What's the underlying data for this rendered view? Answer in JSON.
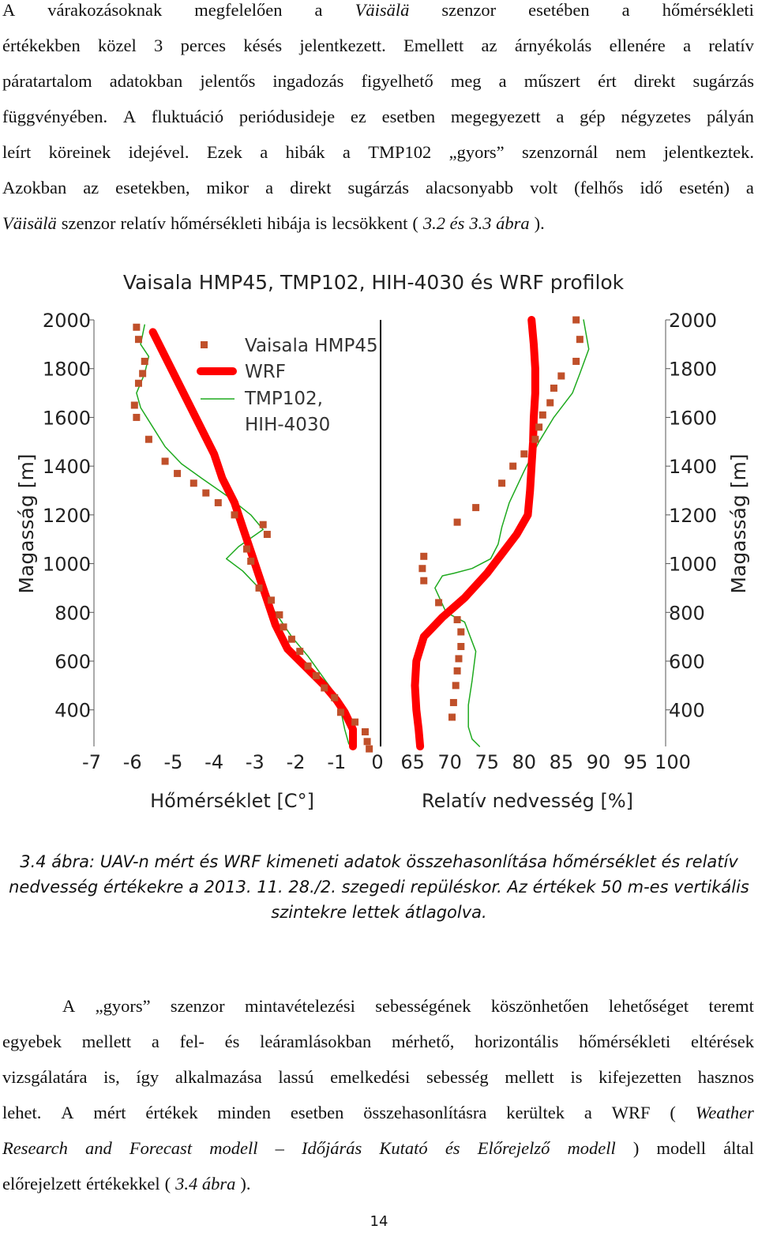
{
  "top_paragraph": [
    [
      "A",
      "várakozásoknak",
      "megfelelően",
      "a",
      {
        "t": "Väisälä",
        "i": true
      },
      "szenzor",
      "esetében",
      "a",
      "hőmérsékleti"
    ],
    [
      "értékekben",
      "közel",
      "3",
      "perces",
      "késés",
      "jelentkezett.",
      "Emellett",
      "az",
      "árnyékolás",
      "ellenére",
      "a",
      "relatív"
    ],
    [
      "páratartalom",
      "adatokban",
      "jelentős",
      "ingadozás",
      "figyelhető",
      "meg",
      "a",
      "műszert",
      "ért",
      "direkt",
      "sugárzás"
    ],
    [
      "függvényében.",
      "A",
      "fluktuáció",
      "periódusideje",
      "ez",
      "esetben",
      "megegyezett",
      "a",
      "gép",
      "négyzetes",
      "pályán"
    ],
    [
      "leírt",
      "köreinek",
      "idejével.",
      "Ezek",
      "a",
      "hibák",
      "a",
      "TMP102",
      "„gyors”",
      "szenzornál",
      "nem",
      "jelentkeztek."
    ],
    [
      "Azokban",
      "az",
      "esetekben,",
      "mikor",
      "a",
      "direkt",
      "sugárzás",
      "alacsonyabb",
      "volt",
      "(felhős",
      "idő",
      "esetén)",
      "a"
    ],
    [
      {
        "t": "Väisälä",
        "i": true
      },
      "szenzor",
      "relatív",
      "hőmérsékleti",
      "hibája",
      "is",
      "lecsökkent",
      "(",
      {
        "t": "3.2 és",
        "i": true
      },
      {
        "t": "3.3 ábra",
        "i": true
      },
      ")."
    ]
  ],
  "chart_data": {
    "type": "line",
    "title": "Vaisala HMP45, TMP102, HIH-4030 és WRF profilok",
    "left_panel": {
      "xlabel": "Hőmérséklet [C°]",
      "xticks": [
        "-7",
        "-6",
        "-5",
        "-4",
        "-3",
        "-2",
        "-1",
        "0"
      ],
      "xlim": [
        -7,
        0
      ],
      "yticks": [
        "2000",
        "1800",
        "1600",
        "1400",
        "1200",
        "1000",
        "800",
        "600",
        "400"
      ],
      "ylabel": "Magasság [m]",
      "ylim": [
        250,
        2000
      ],
      "series": [
        {
          "name": "Vaisala HMP45",
          "color": "#c0502a",
          "style": "square-markers",
          "x": [
            -5.9,
            -5.85,
            -5.7,
            -5.75,
            -5.85,
            -5.95,
            -5.9,
            -5.6,
            -5.2,
            -4.9,
            -4.5,
            -4.2,
            -3.9,
            -3.5,
            -2.8,
            -2.7,
            -3.2,
            -3.1,
            -2.9,
            -2.6,
            -2.4,
            -2.3,
            -2.1,
            -1.9,
            -1.7,
            -1.5,
            -1.3,
            -1.05,
            -0.9,
            -0.55,
            -0.3,
            -0.25,
            -0.2
          ],
          "y": [
            1970,
            1920,
            1830,
            1780,
            1740,
            1650,
            1600,
            1510,
            1420,
            1370,
            1330,
            1290,
            1250,
            1200,
            1160,
            1120,
            1060,
            1010,
            900,
            850,
            790,
            740,
            690,
            640,
            580,
            540,
            490,
            450,
            390,
            350,
            310,
            270,
            240
          ]
        },
        {
          "name": "WRF",
          "color": "#ff0000",
          "style": "thick-line",
          "x": [
            -5.5,
            -5.2,
            -4.9,
            -4.6,
            -4.3,
            -4.0,
            -3.8,
            -3.5,
            -3.3,
            -3.1,
            -2.9,
            -2.7,
            -2.5,
            -2.2,
            -1.9,
            -1.6,
            -1.3,
            -1.0,
            -0.8,
            -0.6,
            -0.6
          ],
          "y": [
            1950,
            1850,
            1750,
            1650,
            1550,
            1450,
            1350,
            1250,
            1150,
            1050,
            950,
            850,
            750,
            650,
            600,
            550,
            500,
            440,
            390,
            320,
            250
          ]
        },
        {
          "name": "TMP102, HIH-4030",
          "color": "#1faa1f",
          "style": "thin-line",
          "x": [
            -5.7,
            -5.8,
            -5.6,
            -5.7,
            -5.9,
            -5.8,
            -5.5,
            -5.2,
            -4.8,
            -4.3,
            -3.7,
            -3.1,
            -2.8,
            -3.4,
            -3.7,
            -3.3,
            -2.9,
            -2.5,
            -2.1,
            -1.7,
            -1.4,
            -1.1,
            -0.9,
            -0.8,
            -0.7
          ],
          "y": [
            1980,
            1900,
            1850,
            1780,
            1700,
            1640,
            1560,
            1480,
            1410,
            1350,
            1280,
            1200,
            1140,
            1070,
            1020,
            970,
            900,
            800,
            700,
            620,
            550,
            480,
            400,
            320,
            260
          ]
        }
      ]
    },
    "right_panel": {
      "xlabel": "Relatív nedvesség [%]",
      "xticks": [
        "65",
        "70",
        "75",
        "80",
        "85",
        "90",
        "95",
        "100"
      ],
      "xlim": [
        61,
        100
      ],
      "yticks": [
        "2000",
        "1800",
        "1600",
        "1400",
        "1200",
        "1000",
        "800",
        "600",
        "400"
      ],
      "ylabel": "Magasság [m]",
      "ylim": [
        250,
        2000
      ],
      "series": [
        {
          "name": "Vaisala HMP45",
          "color": "#c0502a",
          "style": "square-markers",
          "x": [
            87,
            87.5,
            87,
            85,
            84,
            83.5,
            82.5,
            82,
            81.5,
            80,
            78.5,
            77,
            73.5,
            71,
            66.5,
            66.3,
            66.5,
            68.5,
            71,
            71.5,
            71.5,
            71.2,
            71,
            70.8,
            70.5,
            70.3
          ],
          "y": [
            2000,
            1920,
            1830,
            1770,
            1720,
            1660,
            1610,
            1560,
            1510,
            1450,
            1400,
            1330,
            1230,
            1170,
            1030,
            980,
            930,
            840,
            770,
            720,
            660,
            610,
            560,
            500,
            430,
            370
          ]
        },
        {
          "name": "WRF",
          "color": "#ff0000",
          "style": "thick-line",
          "x": [
            81,
            81.3,
            81.5,
            81.5,
            81.3,
            81.2,
            81,
            80.8,
            80.5,
            79,
            77,
            75,
            72,
            69,
            66.5,
            65.5,
            65.3,
            65.5,
            65.8,
            66
          ],
          "y": [
            2000,
            1900,
            1800,
            1700,
            1600,
            1500,
            1400,
            1300,
            1200,
            1120,
            1040,
            960,
            860,
            780,
            700,
            600,
            500,
            400,
            320,
            250
          ]
        },
        {
          "name": "TMP102, HIH-4030",
          "color": "#1faa1f",
          "style": "thin-line",
          "x": [
            88,
            88.7,
            87.5,
            86.5,
            84,
            82,
            80,
            78,
            77,
            76.5,
            75.5,
            73,
            70.5,
            69,
            68,
            69.5,
            72,
            73.5,
            73,
            72.5,
            72.5,
            73,
            74
          ],
          "y": [
            2000,
            1880,
            1780,
            1700,
            1600,
            1500,
            1380,
            1250,
            1150,
            1080,
            1020,
            980,
            960,
            950,
            900,
            800,
            760,
            640,
            520,
            420,
            330,
            280,
            250
          ]
        }
      ]
    },
    "legend": {
      "placement": "top-right of left panel",
      "entries": [
        "Vaisala HMP45",
        "WRF",
        "TMP102,",
        "HIH-4030"
      ]
    }
  },
  "caption": [
    "3.4 ábra: UAV-n mért és WRF kimeneti adatok összehasonlítása hőmérséklet és relatív",
    "nedvesség értékekre a 2013. 11. 28./2. szegedi repüléskor. Az értékek 50 m-es vertikális",
    "szintekre lettek átlagolva."
  ],
  "bottom_paragraph": [
    [
      "A",
      "„gyors”",
      "szenzor",
      "mintavételezési",
      "sebességének",
      "köszönhetően",
      "lehetőséget",
      "teremt"
    ],
    [
      "egyebek",
      "mellett",
      "a",
      "fel-",
      "és",
      "leáramlásokban",
      "mérhető,",
      "horizontális",
      "hőmérsékleti",
      "eltérések"
    ],
    [
      "vizsgálatára",
      "is,",
      "így",
      "alkalmazása",
      "lassú",
      "emelkedési",
      "sebesség",
      "mellett",
      "is",
      "kifejezetten",
      "hasznos"
    ],
    [
      "lehet.",
      "A",
      "mért",
      "értékek",
      "minden",
      "esetben",
      "összehasonlításra",
      "kerültek",
      "a",
      "WRF",
      {
        "t": "(",
        "i": false
      },
      {
        "t": "Weather",
        "i": true
      }
    ],
    [
      {
        "t": "Research",
        "i": true
      },
      {
        "t": "and",
        "i": true
      },
      {
        "t": "Forecast",
        "i": true
      },
      {
        "t": "modell",
        "i": true
      },
      {
        "t": "–",
        "i": true
      },
      {
        "t": "Időjárás",
        "i": true
      },
      {
        "t": "Kutató",
        "i": true
      },
      {
        "t": "és",
        "i": true
      },
      {
        "t": "Előrejelző",
        "i": true
      },
      {
        "t": "modell",
        "i": true
      },
      ")",
      "modell",
      "által"
    ],
    [
      "előrejelzett",
      "értékekkel",
      "(",
      {
        "t": "3.4 ábra",
        "i": true
      },
      ")."
    ]
  ],
  "page_number": "14"
}
